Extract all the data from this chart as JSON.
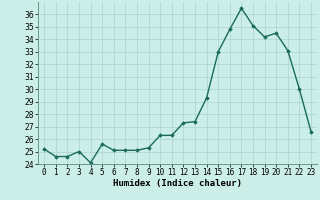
{
  "x": [
    0,
    1,
    2,
    3,
    4,
    5,
    6,
    7,
    8,
    9,
    10,
    11,
    12,
    13,
    14,
    15,
    16,
    17,
    18,
    19,
    20,
    21,
    22,
    23
  ],
  "y": [
    25.2,
    24.6,
    24.6,
    25.0,
    24.1,
    25.6,
    25.1,
    25.1,
    25.1,
    25.3,
    26.3,
    26.3,
    27.3,
    27.4,
    29.3,
    33.0,
    34.8,
    36.5,
    35.1,
    34.2,
    34.5,
    33.1,
    30.0,
    26.6
  ],
  "xlabel": "Humidex (Indice chaleur)",
  "ylim": [
    24,
    37
  ],
  "xlim": [
    -0.5,
    23.5
  ],
  "yticks": [
    24,
    25,
    26,
    27,
    28,
    29,
    30,
    31,
    32,
    33,
    34,
    35,
    36
  ],
  "xtick_labels": [
    "0",
    "1",
    "2",
    "3",
    "4",
    "5",
    "6",
    "7",
    "8",
    "9",
    "10",
    "11",
    "12",
    "13",
    "14",
    "15",
    "16",
    "17",
    "18",
    "19",
    "20",
    "21",
    "22",
    "23"
  ],
  "line_color": "#1a6b5a",
  "marker": "D",
  "marker_size": 1.8,
  "line_width": 1.0,
  "bg_color": "#cceee8",
  "grid_color": "#aad4cc",
  "label_fontsize": 6.5,
  "tick_fontsize": 5.5
}
